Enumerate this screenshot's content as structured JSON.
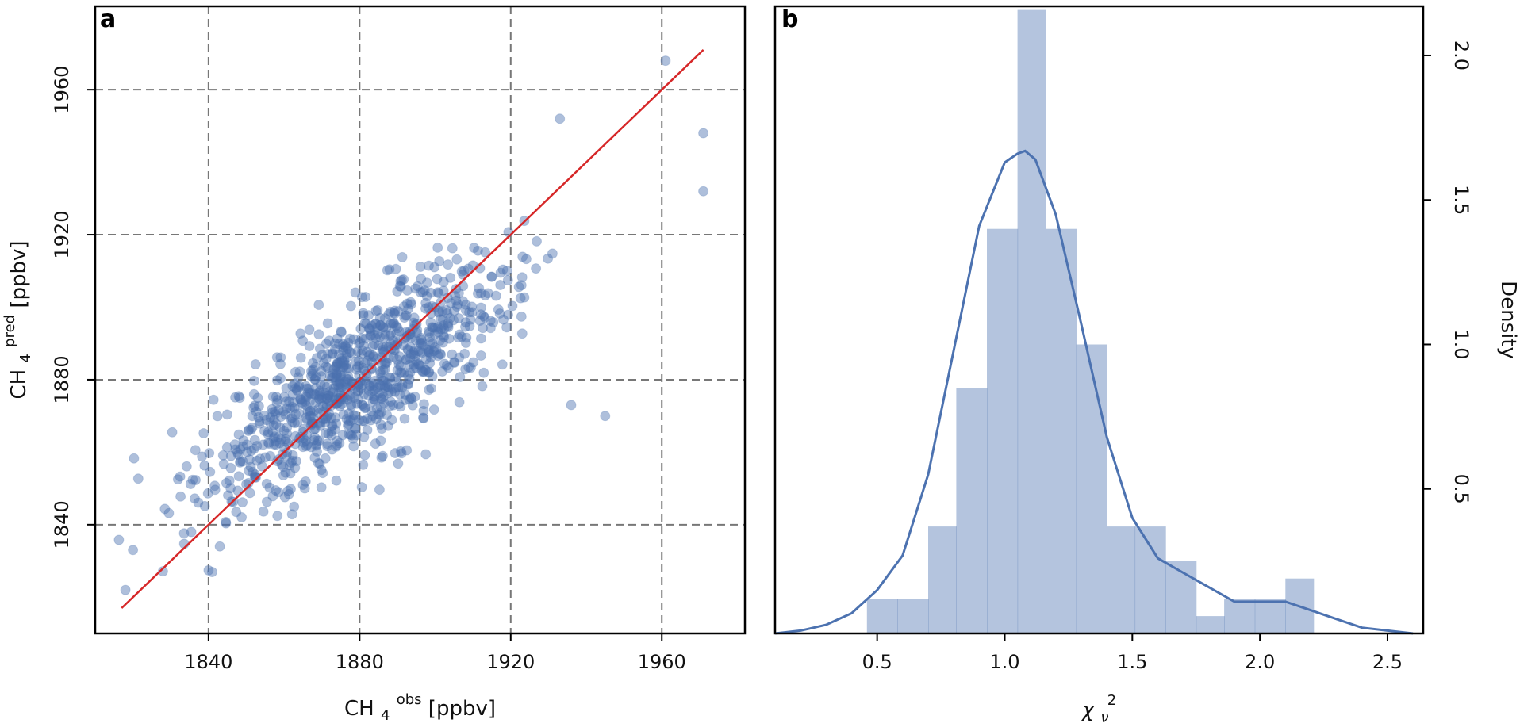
{
  "colors": {
    "points": "#4c72b0",
    "line": "#d62728",
    "bars": "#4c72b0",
    "kde": "#4c72b0",
    "grid": "#777777",
    "background": "#ffffff"
  },
  "chart_data": [
    {
      "type": "scatter",
      "panel_label": "a",
      "xlabel": "CH4obs [ppbv]",
      "xlabel_parts": {
        "base": "CH",
        "sub": "4",
        "sup": "obs",
        "suffix": " [ppbv]"
      },
      "ylabel": "CH4pred [ppbv]",
      "ylabel_parts": {
        "base": "CH",
        "sub": "4",
        "sup": "pred",
        "suffix": " [ppbv]"
      },
      "xlim": [
        1810,
        1982
      ],
      "ylim": [
        1810,
        1983
      ],
      "xticks": [
        1840,
        1880,
        1920,
        1960
      ],
      "yticks": [
        1840,
        1880,
        1920,
        1960
      ],
      "grid": true,
      "grid_style": "dashed",
      "reference_line": {
        "x": [
          1817,
          1971
        ],
        "y": [
          1817,
          1971
        ]
      },
      "distribution": {
        "center": [
          1880,
          1880
        ],
        "x_std": 20,
        "y_std": 16,
        "correlation": 0.78,
        "n_points_drawn": 950
      },
      "notable_points": [
        {
          "x": 1818,
          "y": 1822
        },
        {
          "x": 1820,
          "y": 1833
        },
        {
          "x": 1933,
          "y": 1952
        },
        {
          "x": 1961,
          "y": 1968
        },
        {
          "x": 1971,
          "y": 1948
        },
        {
          "x": 1971,
          "y": 1932
        },
        {
          "x": 1945,
          "y": 1870
        },
        {
          "x": 1936,
          "y": 1873
        },
        {
          "x": 1879,
          "y": 1885
        },
        {
          "x": 1900,
          "y": 1900
        }
      ]
    },
    {
      "type": "histogram",
      "panel_label": "b",
      "xlabel": "χν2",
      "xlabel_parts": {
        "base": "χ",
        "sub": "ν",
        "sup": "2",
        "suffix": ""
      },
      "ylabel": "Density",
      "xlim": [
        0.1,
        2.64
      ],
      "ylim": [
        0.0,
        2.17
      ],
      "xticks": [
        0.5,
        1.0,
        1.5,
        2.0,
        2.5
      ],
      "yticks": [
        0.5,
        1.0,
        1.5,
        2.0
      ],
      "tick_labels_rotation": "y tick labels on right, rotated",
      "grid": false,
      "bins": [
        {
          "left": 0.46,
          "right": 0.58,
          "value": 0.12
        },
        {
          "left": 0.58,
          "right": 0.7,
          "value": 0.12
        },
        {
          "left": 0.7,
          "right": 0.81,
          "value": 0.37
        },
        {
          "left": 0.81,
          "right": 0.93,
          "value": 0.85
        },
        {
          "left": 0.93,
          "right": 1.05,
          "value": 1.4
        },
        {
          "left": 1.05,
          "right": 1.16,
          "value": 2.16
        },
        {
          "left": 1.16,
          "right": 1.28,
          "value": 1.4
        },
        {
          "left": 1.28,
          "right": 1.4,
          "value": 1.0
        },
        {
          "left": 1.4,
          "right": 1.51,
          "value": 0.37
        },
        {
          "left": 1.51,
          "right": 1.63,
          "value": 0.37
        },
        {
          "left": 1.63,
          "right": 1.75,
          "value": 0.25
        },
        {
          "left": 1.75,
          "right": 1.86,
          "value": 0.06
        },
        {
          "left": 1.86,
          "right": 1.98,
          "value": 0.12
        },
        {
          "left": 1.98,
          "right": 2.1,
          "value": 0.12
        },
        {
          "left": 2.1,
          "right": 2.21,
          "value": 0.19
        }
      ],
      "kde": {
        "x": [
          0.1,
          0.2,
          0.3,
          0.4,
          0.5,
          0.6,
          0.7,
          0.8,
          0.9,
          1.0,
          1.05,
          1.08,
          1.12,
          1.2,
          1.3,
          1.4,
          1.5,
          1.6,
          1.7,
          1.8,
          1.9,
          2.0,
          2.1,
          2.2,
          2.3,
          2.4,
          2.5,
          2.6
        ],
        "y": [
          0.0,
          0.01,
          0.03,
          0.07,
          0.15,
          0.27,
          0.55,
          0.98,
          1.41,
          1.63,
          1.66,
          1.67,
          1.64,
          1.45,
          1.07,
          0.68,
          0.4,
          0.26,
          0.21,
          0.16,
          0.11,
          0.11,
          0.11,
          0.08,
          0.05,
          0.02,
          0.01,
          0.0
        ]
      }
    }
  ]
}
